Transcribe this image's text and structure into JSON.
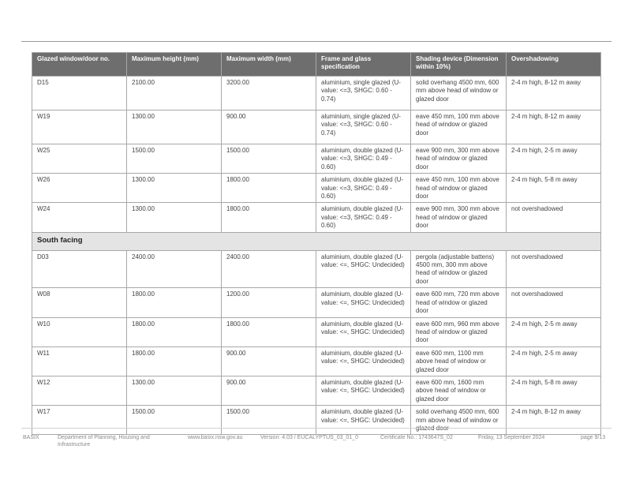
{
  "table": {
    "headers": [
      "Glazed window/door no.",
      "Maximum height (mm)",
      "Maximum width (mm)",
      "Frame and glass specification",
      "Shading device (Dimension within 10%)",
      "Overshadowing"
    ],
    "rows_top": [
      [
        "D15",
        "2100.00",
        "3200.00",
        "aluminium, single glazed (U-value: <=3,  SHGC: 0.60 - 0.74)",
        "solid overhang 4500 mm, 600 mm above head of window or glazed door",
        "2-4 m high, 8-12 m away"
      ],
      [
        "W19",
        "1300.00",
        "900.00",
        "aluminium, single glazed (U-value: <=3,  SHGC: 0.60 - 0.74)",
        "eave 450 mm, 100 mm above head of window or glazed door",
        "2-4 m high, 8-12 m away"
      ],
      [
        "W25",
        "1500.00",
        "1500.00",
        "aluminium, double glazed (U-value: <=3,  SHGC: 0.49 - 0.60)",
        "eave 900 mm, 300 mm above head of window or glazed door",
        "2-4 m high, 2-5 m away"
      ],
      [
        "W26",
        "1300.00",
        "1800.00",
        "aluminium, double glazed (U-value: <=3,  SHGC: 0.49 - 0.60)",
        "eave 450 mm, 100 mm above head of window or glazed door",
        "2-4 m high, 5-8 m away"
      ],
      [
        "W24",
        "1300.00",
        "1800.00",
        "aluminium, double glazed (U-value: <=3,  SHGC: 0.49 - 0.60)",
        "eave 900 mm, 300 mm above head of window or glazed door",
        "not overshadowed"
      ]
    ],
    "section_title": "South facing",
    "rows_south": [
      [
        "D03",
        "2400.00",
        "2400.00",
        "aluminium, double glazed (U-value: <=,  SHGC: Undecided)",
        "pergola (adjustable battens) 4500 mm, 300 mm above head of window or glazed door",
        "not overshadowed"
      ],
      [
        "W08",
        "1800.00",
        "1200.00",
        "aluminium, double glazed (U-value: <=,  SHGC: Undecided)",
        "eave 600 mm, 720 mm above head of window or glazed door",
        "not overshadowed"
      ],
      [
        "W10",
        "1800.00",
        "1800.00",
        "aluminium, double glazed (U-value: <=,  SHGC: Undecided)",
        "eave 600 mm, 960 mm above head of window or glazed door",
        "2-4 m high, 2-5 m away"
      ],
      [
        "W11",
        "1800.00",
        "900.00",
        "aluminium, double glazed (U-value: <=,  SHGC: Undecided)",
        "eave 600 mm, 1100 mm above head of window or glazed door",
        "2-4 m high, 2-5 m away"
      ],
      [
        "W12",
        "1300.00",
        "900.00",
        "aluminium, double glazed (U-value: <=,  SHGC: Undecided)",
        "eave 600 mm, 1600 mm above head of window or glazed door",
        "2-4 m high, 5-8 m away"
      ],
      [
        "W17",
        "1500.00",
        "1500.00",
        "aluminium, double glazed (U-value: <=,  SHGC: Undecided)",
        "solid overhang 4500 mm, 600 mm above head of window or glazed door",
        "2-4 m high, 8-12 m away"
      ]
    ]
  },
  "footer": {
    "basix": "BASIX",
    "department": "Department of Planning, Housing and Infrastructure",
    "website": "www.basix.nsw.gov.au",
    "version": "Version: 4.03 / EUCALYPTUS_03_01_0",
    "certificate": "Certificate No.: 1743647S_02",
    "date": "Friday, 13 September 2024",
    "page": "page 9/13"
  }
}
